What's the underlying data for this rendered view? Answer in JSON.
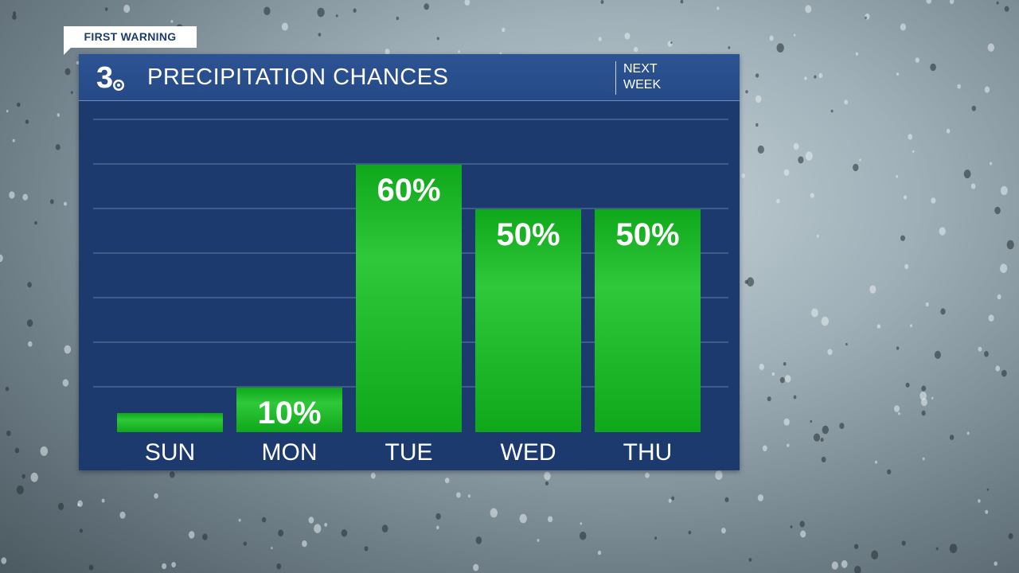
{
  "header": {
    "badge": "FIRST WARNING",
    "title": "PRECIPITATION CHANCES",
    "period_line1": "NEXT",
    "period_line2": "WEEK",
    "logo_icon": "channel-3-logo-icon"
  },
  "colors": {
    "panel": "#1c3a6d",
    "header": "#2a4f8e",
    "bar": "#0fa81a",
    "bar_light": "#2fc83a",
    "grid": "#3f5b88",
    "text": "#ffffff"
  },
  "chart_data": {
    "type": "bar",
    "title": "PRECIPITATION CHANCES",
    "categories": [
      "SUN",
      "MON",
      "TUE",
      "WED",
      "THU"
    ],
    "values": [
      0,
      10,
      60,
      50,
      50
    ],
    "data_labels": [
      "",
      "10%",
      "60%",
      "50%",
      "50%"
    ],
    "unit": "%",
    "ylim": [
      0,
      70
    ],
    "grid": true,
    "legend": "none"
  }
}
